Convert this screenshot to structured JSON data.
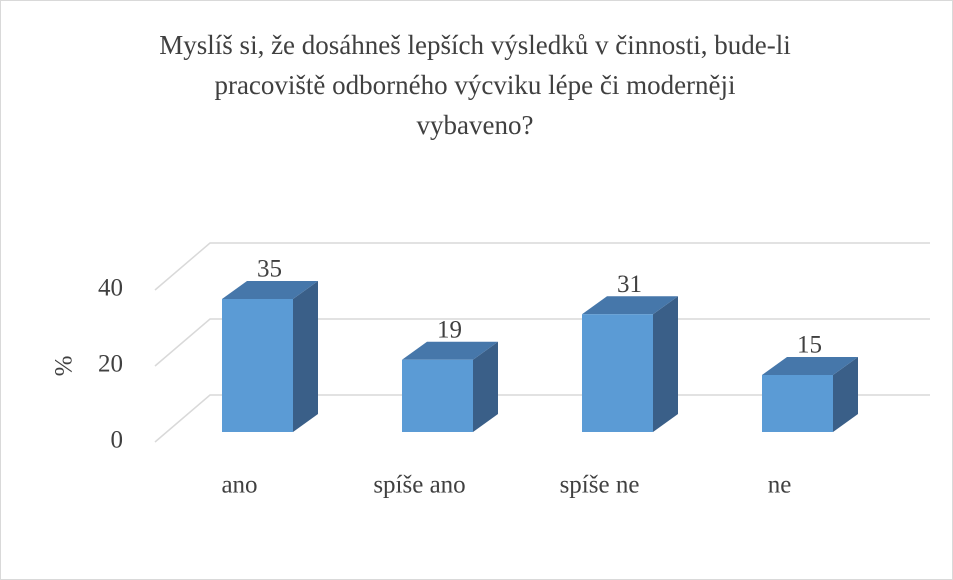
{
  "chart_data": {
    "type": "bar3d",
    "title": [
      "Myslíš si, že dosáhneš lepších výsledků v činnosti, bude-li",
      "pracoviště odborného výcviku lépe či moderněji",
      "vybaveno?"
    ],
    "y_label": "%",
    "categories": [
      "ano",
      "spíše ano",
      "spíše ne",
      "ne"
    ],
    "values": [
      35,
      19,
      31,
      15
    ],
    "color": "#5b9bd5",
    "ylim": [
      0,
      40
    ],
    "yticks": [
      0,
      20,
      40
    ],
    "grid": true
  }
}
